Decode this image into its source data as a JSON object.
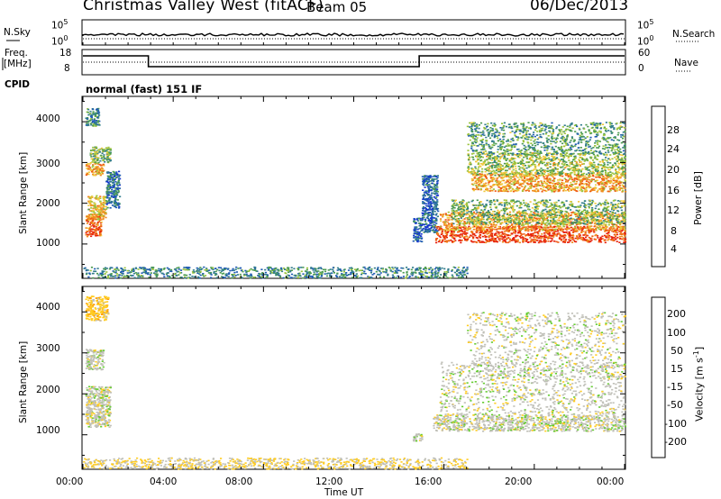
{
  "header": {
    "title": "Christmas Valley West (fitACF)",
    "beam": "Beam 05",
    "date": "06/Dec/2013"
  },
  "status_panel": {
    "left_labels": {
      "nsky": "N.Sky",
      "freq": "Freq.",
      "freq_unit": "[MHz]",
      "cpid": "CPID"
    },
    "right_labels": {
      "nsearch": "N.Search",
      "nave": "Nave"
    },
    "noise_ticks_left": [
      "10^5",
      "10^0"
    ],
    "noise_ticks_right": [
      "10^5",
      "10^0"
    ],
    "freq_ticks": [
      "18",
      "8"
    ],
    "nave_ticks": [
      "60",
      "0"
    ],
    "cpid_text": "normal (fast) 151 IF"
  },
  "x_ticks": [
    "00:00",
    "04:00",
    "08:00",
    "12:00",
    "16:00",
    "20:00",
    "00:00"
  ],
  "x_label": "Time UT",
  "colors": {
    "power": [
      "#1432d2",
      "#1e5ab4",
      "#327d8c",
      "#4b9b50",
      "#9bc33c",
      "#f0c83c",
      "#f08c1e",
      "#ee5a14",
      "#e61e0a"
    ],
    "velocity": [
      "#ff0000",
      "#ff6600",
      "#ff9900",
      "#ffcc22",
      "#c0c0b8",
      "#66cc33",
      "#339966",
      "#3355aa",
      "#2233bb"
    ]
  },
  "chart_data": [
    {
      "type": "heatmap",
      "panel": "power",
      "ylabel": "Slant Range [km]",
      "yticks": [
        "1000",
        "2000",
        "3000",
        "4000"
      ],
      "ylim": [
        180,
        4600
      ],
      "xlim": [
        0,
        24
      ],
      "colorbar_label": "Power [dB]",
      "colorbar_ticks": [
        "4",
        "8",
        "12",
        "16",
        "20",
        "24",
        "28"
      ],
      "colorbar_range": [
        0,
        32
      ],
      "regions": [
        {
          "t": [
            0.1,
            0.8
          ],
          "r": [
            1200,
            1750
          ],
          "value": 26
        },
        {
          "t": [
            0.2,
            1.0
          ],
          "r": [
            1600,
            2200
          ],
          "value": 20
        },
        {
          "t": [
            0.1,
            0.9
          ],
          "r": [
            2700,
            3000
          ],
          "value": 22
        },
        {
          "t": [
            0.3,
            1.2
          ],
          "r": [
            3000,
            3400
          ],
          "value": 14
        },
        {
          "t": [
            0.1,
            0.7
          ],
          "r": [
            3900,
            4350
          ],
          "value": 10
        },
        {
          "t": [
            1.0,
            1.6
          ],
          "r": [
            1900,
            2800
          ],
          "value": 8
        },
        {
          "t": [
            14.6,
            15.0
          ],
          "r": [
            1050,
            1650
          ],
          "value": 6
        },
        {
          "t": [
            15.0,
            15.7
          ],
          "r": [
            1300,
            2700
          ],
          "value": 6
        },
        {
          "t": [
            15.6,
            24.0
          ],
          "r": [
            1050,
            1450
          ],
          "value": 28
        },
        {
          "t": [
            15.8,
            24.0
          ],
          "r": [
            1350,
            1800
          ],
          "value": 22
        },
        {
          "t": [
            16.3,
            24.0
          ],
          "r": [
            1500,
            2100
          ],
          "value": 14
        },
        {
          "t": [
            17.2,
            24.0
          ],
          "r": [
            2300,
            2750
          ],
          "value": 22
        },
        {
          "t": [
            17.0,
            24.0
          ],
          "r": [
            2700,
            3250
          ],
          "value": 16
        },
        {
          "t": [
            17.0,
            24.0
          ],
          "r": [
            3200,
            4000
          ],
          "value": 12
        },
        {
          "t": [
            0.0,
            17.0
          ],
          "r": [
            180,
            450
          ],
          "value": 10
        }
      ]
    },
    {
      "type": "heatmap",
      "panel": "velocity",
      "ylabel": "Slant Range [km]",
      "yticks": [
        "1000",
        "2000",
        "3000",
        "4000"
      ],
      "ylim": [
        180,
        4600
      ],
      "xlim": [
        0,
        24
      ],
      "colorbar_label": "Velocity [m s^-1]",
      "colorbar_ticks": [
        "-200",
        "-100",
        "-50",
        "-15",
        "15",
        "50",
        "100",
        "200"
      ],
      "colorbar_range": [
        -250,
        250
      ],
      "regions": [
        {
          "t": [
            0.1,
            1.2
          ],
          "r": [
            1200,
            2200
          ],
          "value": 0
        },
        {
          "t": [
            0.1,
            0.9
          ],
          "r": [
            2600,
            3100
          ],
          "value": 0
        },
        {
          "t": [
            0.1,
            1.1
          ],
          "r": [
            3800,
            4400
          ],
          "value": -60
        },
        {
          "t": [
            14.6,
            15.0
          ],
          "r": [
            850,
            1050
          ],
          "value": 0
        },
        {
          "t": [
            15.5,
            24.0
          ],
          "r": [
            1100,
            1500
          ],
          "value": 0
        },
        {
          "t": [
            15.8,
            24.0
          ],
          "r": [
            1500,
            2800
          ],
          "value": 0
        },
        {
          "t": [
            17.0,
            24.0
          ],
          "r": [
            2400,
            4000
          ],
          "value": 0
        },
        {
          "t": [
            0.0,
            17.0
          ],
          "r": [
            180,
            450
          ],
          "value": -30
        }
      ]
    }
  ]
}
